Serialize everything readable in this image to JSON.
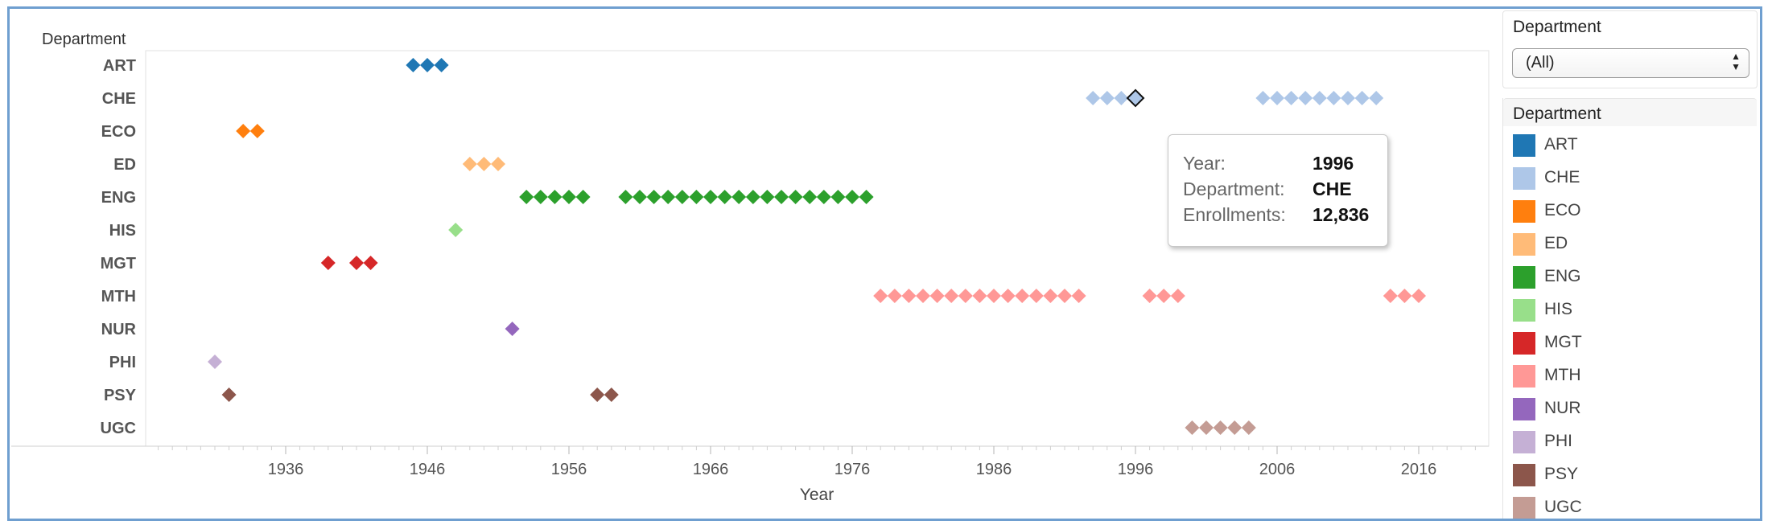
{
  "chart_data": {
    "type": "scatter",
    "mark": "diamond",
    "xlabel": "Year",
    "row_header": "Department",
    "xlim": [
      1926,
      2022
    ],
    "x_ticks": [
      "1936",
      "1946",
      "1956",
      "1966",
      "1976",
      "1986",
      "1996",
      "2006",
      "2016"
    ],
    "grid": false,
    "legend": "right",
    "categories": [
      "ART",
      "CHE",
      "ECO",
      "ED",
      "ENG",
      "HIS",
      "MGT",
      "MTH",
      "NUR",
      "PHI",
      "PSY",
      "UGC"
    ],
    "series": [
      {
        "name": "ART",
        "color": "#1f77b4",
        "years": [
          1945,
          1946,
          1947
        ]
      },
      {
        "name": "CHE",
        "color": "#aec7e8",
        "years": [
          1993,
          1994,
          1995,
          1996,
          2005,
          2006,
          2007,
          2008,
          2009,
          2010,
          2011,
          2012,
          2013
        ]
      },
      {
        "name": "ECO",
        "color": "#ff7f0e",
        "years": [
          1933,
          1934
        ]
      },
      {
        "name": "ED",
        "color": "#ffbb78",
        "years": [
          1949,
          1950,
          1951
        ]
      },
      {
        "name": "ENG",
        "color": "#2ca02c",
        "years": [
          1953,
          1954,
          1955,
          1956,
          1957,
          1960,
          1961,
          1962,
          1963,
          1964,
          1965,
          1966,
          1967,
          1968,
          1969,
          1970,
          1971,
          1972,
          1973,
          1974,
          1975,
          1976,
          1977
        ]
      },
      {
        "name": "HIS",
        "color": "#98df8a",
        "years": [
          1948
        ]
      },
      {
        "name": "MGT",
        "color": "#d62728",
        "years": [
          1939,
          1941,
          1942
        ]
      },
      {
        "name": "MTH",
        "color": "#ff9896",
        "years": [
          1978,
          1979,
          1980,
          1981,
          1982,
          1983,
          1984,
          1985,
          1986,
          1987,
          1988,
          1989,
          1990,
          1991,
          1992,
          1997,
          1998,
          1999,
          2014,
          2015,
          2016
        ]
      },
      {
        "name": "NUR",
        "color": "#9467bd",
        "years": [
          1952
        ]
      },
      {
        "name": "PHI",
        "color": "#c5b0d5",
        "years": [
          1931
        ]
      },
      {
        "name": "PSY",
        "color": "#8c564b",
        "years": [
          1932,
          1958,
          1959
        ]
      },
      {
        "name": "UGC",
        "color": "#c49c94",
        "years": [
          2000,
          2001,
          2002,
          2003,
          2004
        ]
      }
    ],
    "highlight": {
      "department": "CHE",
      "year": 1996
    }
  },
  "tooltip": {
    "year_label": "Year:",
    "year_value": "1996",
    "department_label": "Department:",
    "department_value": "CHE",
    "enrollments_label": "Enrollments:",
    "enrollments_value": "12,836"
  },
  "filter": {
    "title": "Department",
    "selected": "(All)"
  },
  "legend": {
    "title": "Department"
  }
}
